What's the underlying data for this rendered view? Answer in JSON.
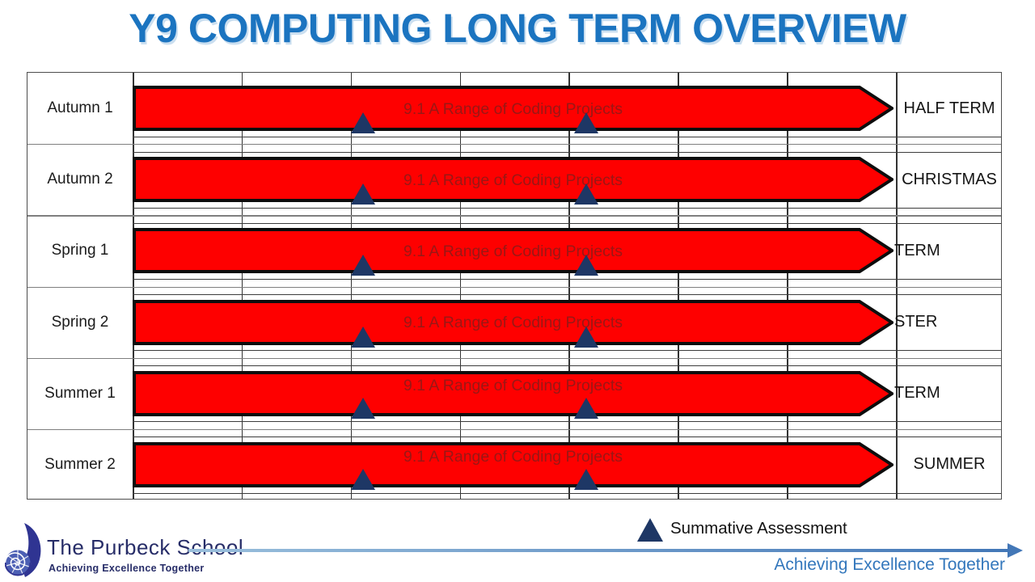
{
  "title": "Y9 COMPUTING LONG TERM OVERVIEW",
  "table": {
    "rows": [
      {
        "term": "Autumn 1",
        "unit": "9.1 A Range of Coding Projects",
        "milestone": "HALF TERM",
        "milestone_align": "center"
      },
      {
        "term": "Autumn 2",
        "unit": "9.1 A Range of Coding Projects",
        "milestone": "CHRISTMAS",
        "milestone_align": "center"
      },
      {
        "term": "Spring 1",
        "unit": "9.1 A Range of Coding Projects",
        "milestone": "TERM",
        "milestone_align": "left"
      },
      {
        "term": "Spring 2",
        "unit": "9.1 A Range of Coding Projects",
        "milestone": "STER",
        "milestone_align": "left"
      },
      {
        "term": "Summer 1",
        "unit": "9.1 A Range of Coding Projects",
        "milestone": "TERM",
        "milestone_align": "left"
      },
      {
        "term": "Summer 2",
        "unit": "9.1 A Range of Coding Projects",
        "milestone": "SUMMER",
        "milestone_align": "center"
      }
    ],
    "assessments_per_row": 2,
    "assessment_marker_positions": [
      0.3025,
      0.5964
    ]
  },
  "legend": {
    "marker": "triangle-icon",
    "label": "Summative Assessment"
  },
  "footer": {
    "school_name": "The Purbeck School",
    "school_motto": "Achieving Excellence Together",
    "slogan": "Achieving Excellence Together"
  },
  "colors": {
    "title_blue": "#1B74C0",
    "arrow_red": "#FE0000",
    "arrow_border": "#0D0D0D",
    "arrow_text_red": "#9A1715",
    "assessment_navy": "#1E3765",
    "line_blue": "#4377B7",
    "slogan_blue": "#3377BC",
    "logo_navy": "#2F3492"
  }
}
